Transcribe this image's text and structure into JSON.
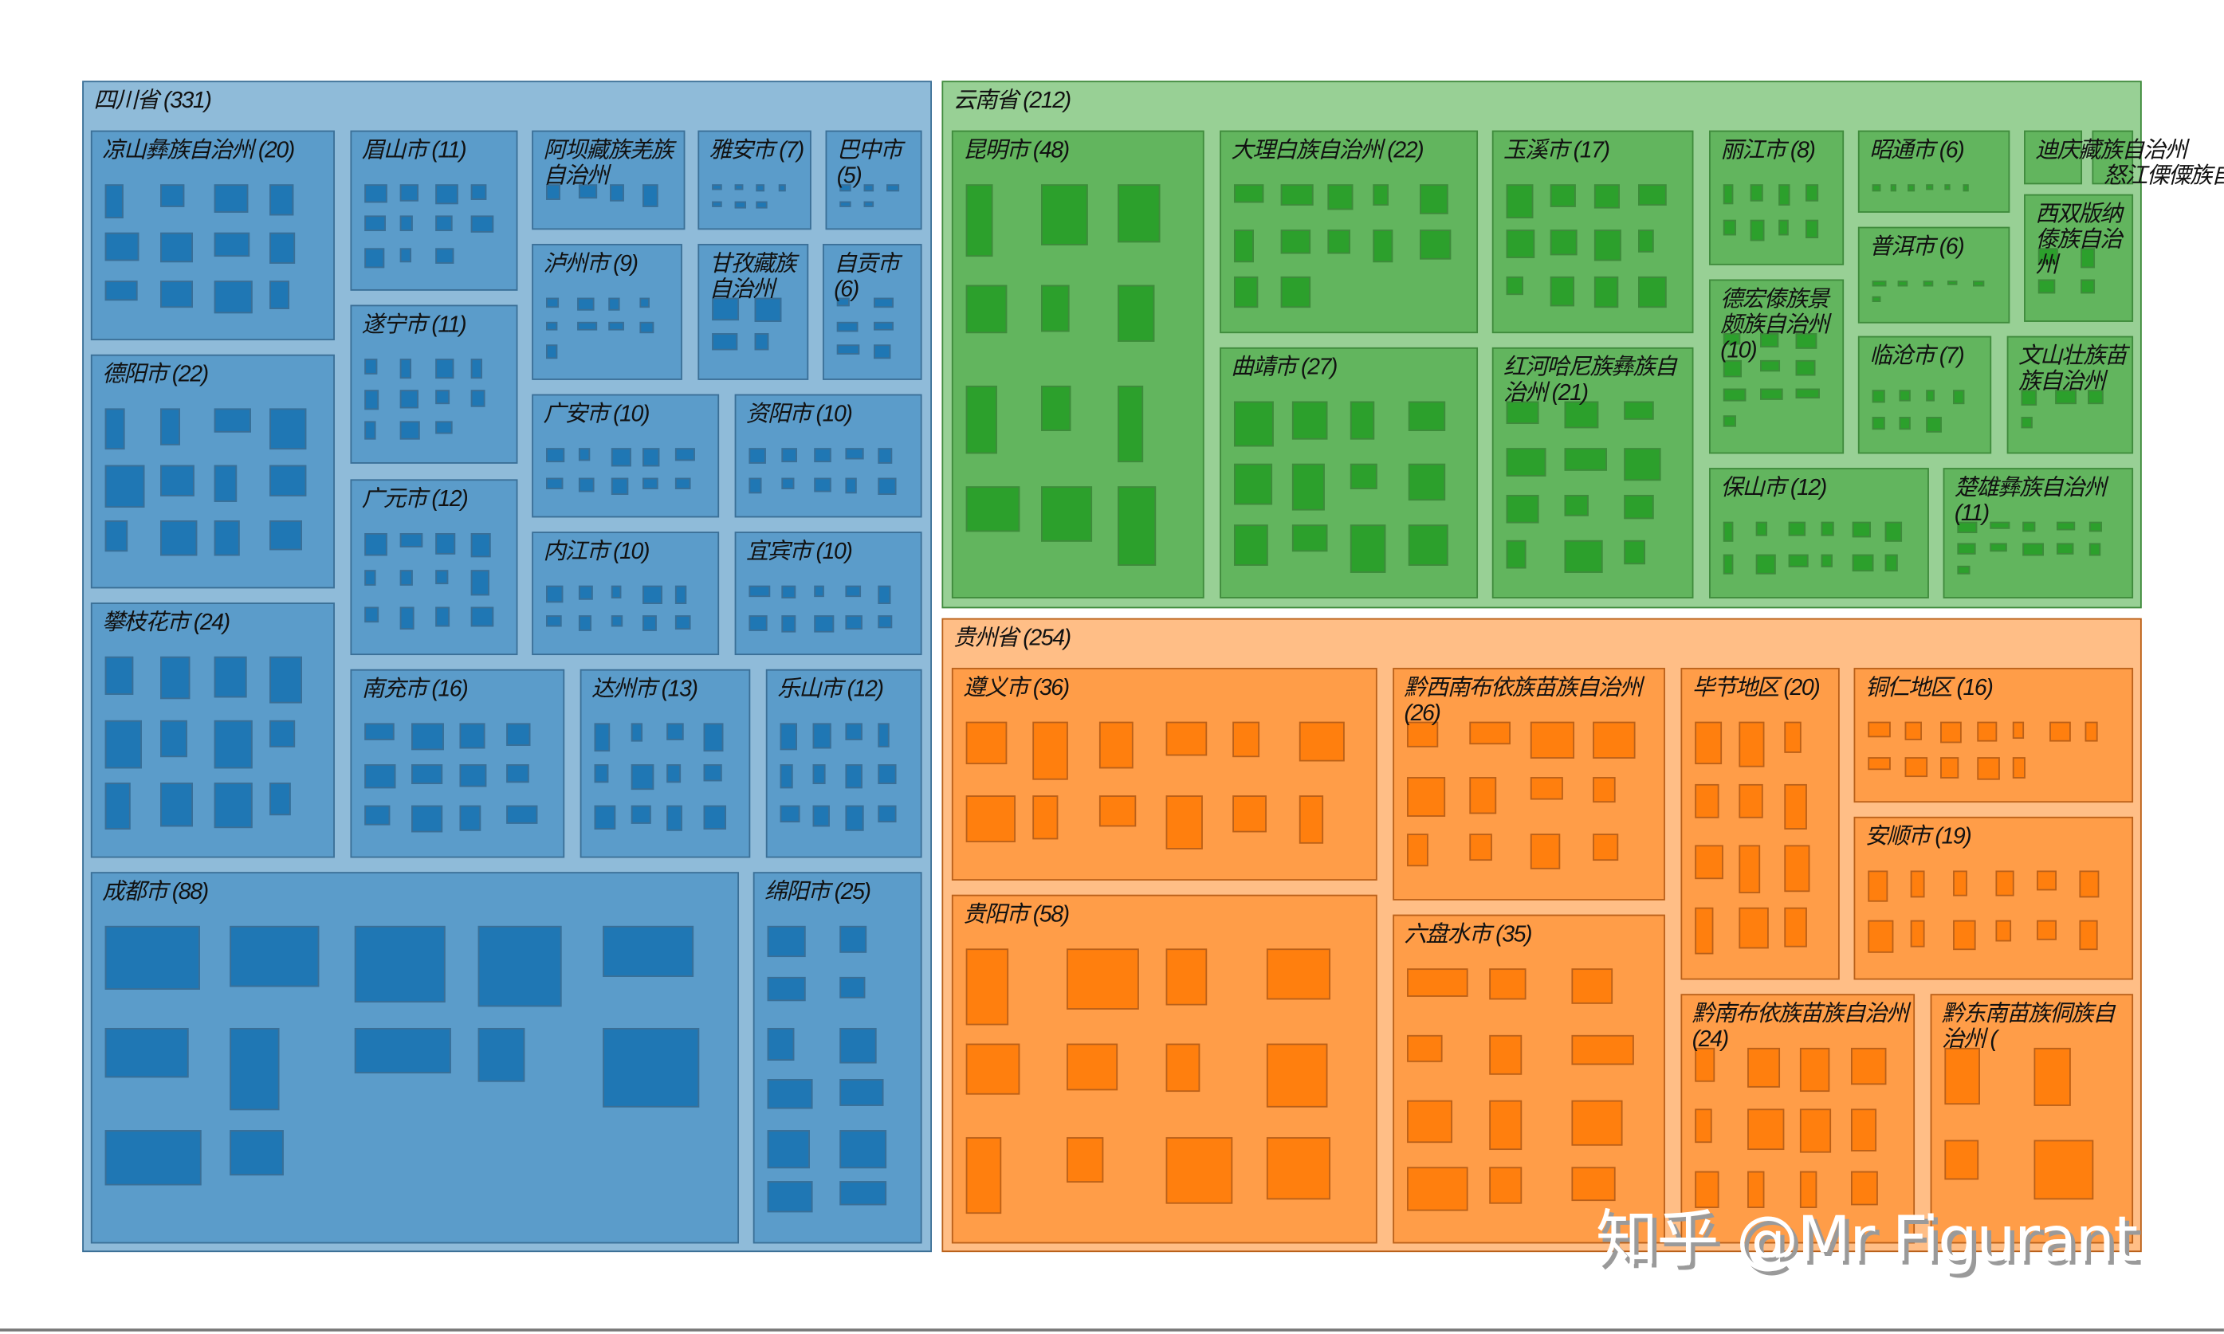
{
  "chart_data": {
    "type": "treemap",
    "colors": {
      "四川省": {
        "group": "#8fbbd9",
        "child": "#5b9cca",
        "leaf": "#1f77b4",
        "border": "#3b6f96"
      },
      "云南省": {
        "group": "#98d095",
        "child": "#62b55e",
        "leaf": "#2ca02c",
        "border": "#3f8a3c"
      },
      "贵州省": {
        "group": "#ffbe86",
        "child": "#ff9d48",
        "leaf": "#ff7f0e",
        "border": "#b9601a"
      }
    },
    "groups": [
      {
        "name": "四川省",
        "value": 331,
        "label": "四川省 (331)",
        "children": [
          {
            "name": "凉山彝族自治州",
            "value": 20,
            "label": "凉山彝族自治州 (20)"
          },
          {
            "name": "眉山市",
            "value": 11,
            "label": "眉山市 (11)"
          },
          {
            "name": "阿坝藏族羌族自治州",
            "label": "阿坝藏族羌族自治州"
          },
          {
            "name": "雅安市",
            "value": 7,
            "label": "雅安市 (7)"
          },
          {
            "name": "巴中市",
            "value": 5,
            "label": "巴中市 (5)"
          },
          {
            "name": "泸州市",
            "value": 9,
            "label": "泸州市 (9)"
          },
          {
            "name": "甘孜藏族自治州",
            "label": "甘孜藏族自治州"
          },
          {
            "name": "自贡市",
            "value": 6,
            "label": "自贡市 (6)"
          },
          {
            "name": "遂宁市",
            "value": 11,
            "label": "遂宁市 (11)"
          },
          {
            "name": "德阳市",
            "value": 22,
            "label": "德阳市 (22)"
          },
          {
            "name": "广安市",
            "value": 10,
            "label": "广安市 (10)"
          },
          {
            "name": "资阳市",
            "value": 10,
            "label": "资阳市 (10)"
          },
          {
            "name": "广元市",
            "value": 12,
            "label": "广元市 (12)"
          },
          {
            "name": "内江市",
            "value": 10,
            "label": "内江市 (10)"
          },
          {
            "name": "宜宾市",
            "value": 10,
            "label": "宜宾市 (10)"
          },
          {
            "name": "攀枝花市",
            "value": 24,
            "label": "攀枝花市 (24)"
          },
          {
            "name": "南充市",
            "value": 16,
            "label": "南充市 (16)"
          },
          {
            "name": "达州市",
            "value": 13,
            "label": "达州市 (13)"
          },
          {
            "name": "乐山市",
            "value": 12,
            "label": "乐山市 (12)"
          },
          {
            "name": "成都市",
            "value": 88,
            "label": "成都市 (88)"
          },
          {
            "name": "绵阳市",
            "value": 25,
            "label": "绵阳市 (25)"
          }
        ]
      },
      {
        "name": "云南省",
        "value": 212,
        "label": "云南省 (212)",
        "children": [
          {
            "name": "昆明市",
            "value": 48,
            "label": "昆明市 (48)"
          },
          {
            "name": "大理白族自治州",
            "value": 22,
            "label": "大理白族自治州 (22)"
          },
          {
            "name": "玉溪市",
            "value": 17,
            "label": "玉溪市 (17)"
          },
          {
            "name": "丽江市",
            "value": 8,
            "label": "丽江市 (8)"
          },
          {
            "name": "昭通市",
            "value": 6,
            "label": "昭通市 (6)"
          },
          {
            "name": "迪庆藏族自治州",
            "label": "迪庆藏族自治州"
          },
          {
            "name": "怒江傈僳族自治州",
            "label": "怒江傈僳族自治州"
          },
          {
            "name": "普洱市",
            "value": 6,
            "label": "普洱市 (6)"
          },
          {
            "name": "西双版纳傣族自治州",
            "label": "西双版纳傣族自治州"
          },
          {
            "name": "德宏傣族景颇族自治州",
            "value": 10,
            "label": "德宏傣族景颇族自治州 (10)"
          },
          {
            "name": "曲靖市",
            "value": 27,
            "label": "曲靖市 (27)"
          },
          {
            "name": "红河哈尼族彝族自治州",
            "value": 21,
            "label": "红河哈尼族彝族自治州 (21)"
          },
          {
            "name": "临沧市",
            "value": 7,
            "label": "临沧市 (7)"
          },
          {
            "name": "文山壮族苗族自治州",
            "label": "文山壮族苗族自治州"
          },
          {
            "name": "保山市",
            "value": 12,
            "label": "保山市 (12)"
          },
          {
            "name": "楚雄彝族自治州",
            "value": 11,
            "label": "楚雄彝族自治州 (11)"
          }
        ]
      },
      {
        "name": "贵州省",
        "value": 254,
        "label": "贵州省 (254)",
        "children": [
          {
            "name": "遵义市",
            "value": 36,
            "label": "遵义市 (36)"
          },
          {
            "name": "黔西南布依族苗族自治州",
            "value": 26,
            "label": "黔西南布依族苗族自治州 (26)"
          },
          {
            "name": "毕节地区",
            "value": 20,
            "label": "毕节地区 (20)"
          },
          {
            "name": "铜仁地区",
            "value": 16,
            "label": "铜仁地区 (16)"
          },
          {
            "name": "安顺市",
            "value": 19,
            "label": "安顺市 (19)"
          },
          {
            "name": "贵阳市",
            "value": 58,
            "label": "贵阳市 (58)"
          },
          {
            "name": "六盘水市",
            "value": 35,
            "label": "六盘水市 (35)"
          },
          {
            "name": "黔南布依族苗族自治州",
            "value": 24,
            "label": "黔南布依族苗族自治州 (24)"
          },
          {
            "name": "黔东南苗族侗族自治州",
            "label": "黔东南苗族侗族自治州 ("
          }
        ]
      }
    ]
  },
  "watermark": "知乎 @Mr Figurant"
}
